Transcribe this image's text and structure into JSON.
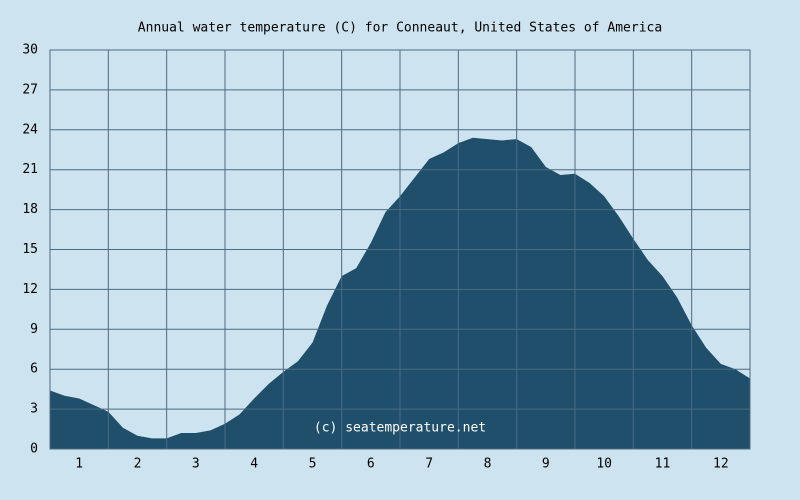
{
  "chart_data": {
    "type": "area",
    "title": "Annual water temperature (C) for Conneaut, United States of America",
    "annotation": "(c) seatemperature.net",
    "color": "#1f4f6a",
    "x": [
      0.5,
      0.75,
      1.0,
      1.25,
      1.5,
      1.75,
      2.0,
      2.25,
      2.5,
      2.75,
      3.0,
      3.25,
      3.5,
      3.75,
      4.0,
      4.25,
      4.5,
      4.75,
      5.0,
      5.25,
      5.5,
      5.75,
      6.0,
      6.25,
      6.5,
      6.75,
      7.0,
      7.25,
      7.5,
      7.75,
      8.0,
      8.25,
      8.5,
      8.75,
      9.0,
      9.25,
      9.5,
      9.75,
      10.0,
      10.25,
      10.5,
      10.75,
      11.0,
      11.25,
      11.5,
      11.75,
      12.0,
      12.25,
      12.5
    ],
    "values": [
      4.4,
      4.0,
      3.8,
      3.3,
      2.8,
      1.6,
      1.0,
      0.8,
      0.8,
      1.2,
      1.2,
      1.4,
      1.9,
      2.6,
      3.8,
      4.9,
      5.8,
      6.6,
      8.0,
      10.8,
      13.0,
      13.6,
      15.5,
      17.8,
      19.0,
      20.4,
      21.8,
      22.3,
      23.0,
      23.4,
      23.3,
      23.2,
      23.3,
      22.7,
      21.2,
      20.6,
      20.7,
      20.0,
      19.0,
      17.5,
      15.8,
      14.2,
      13.0,
      11.4,
      9.3,
      7.6,
      6.4,
      6.0,
      5.3
    ],
    "xlim": [
      0.5,
      12.5
    ],
    "xticks": [
      1,
      2,
      3,
      4,
      5,
      6,
      7,
      8,
      9,
      10,
      11,
      12
    ],
    "ylim": [
      0,
      30
    ],
    "yticks": [
      0,
      3,
      6,
      9,
      12,
      15,
      18,
      21,
      24,
      27,
      30
    ],
    "grid": true
  }
}
